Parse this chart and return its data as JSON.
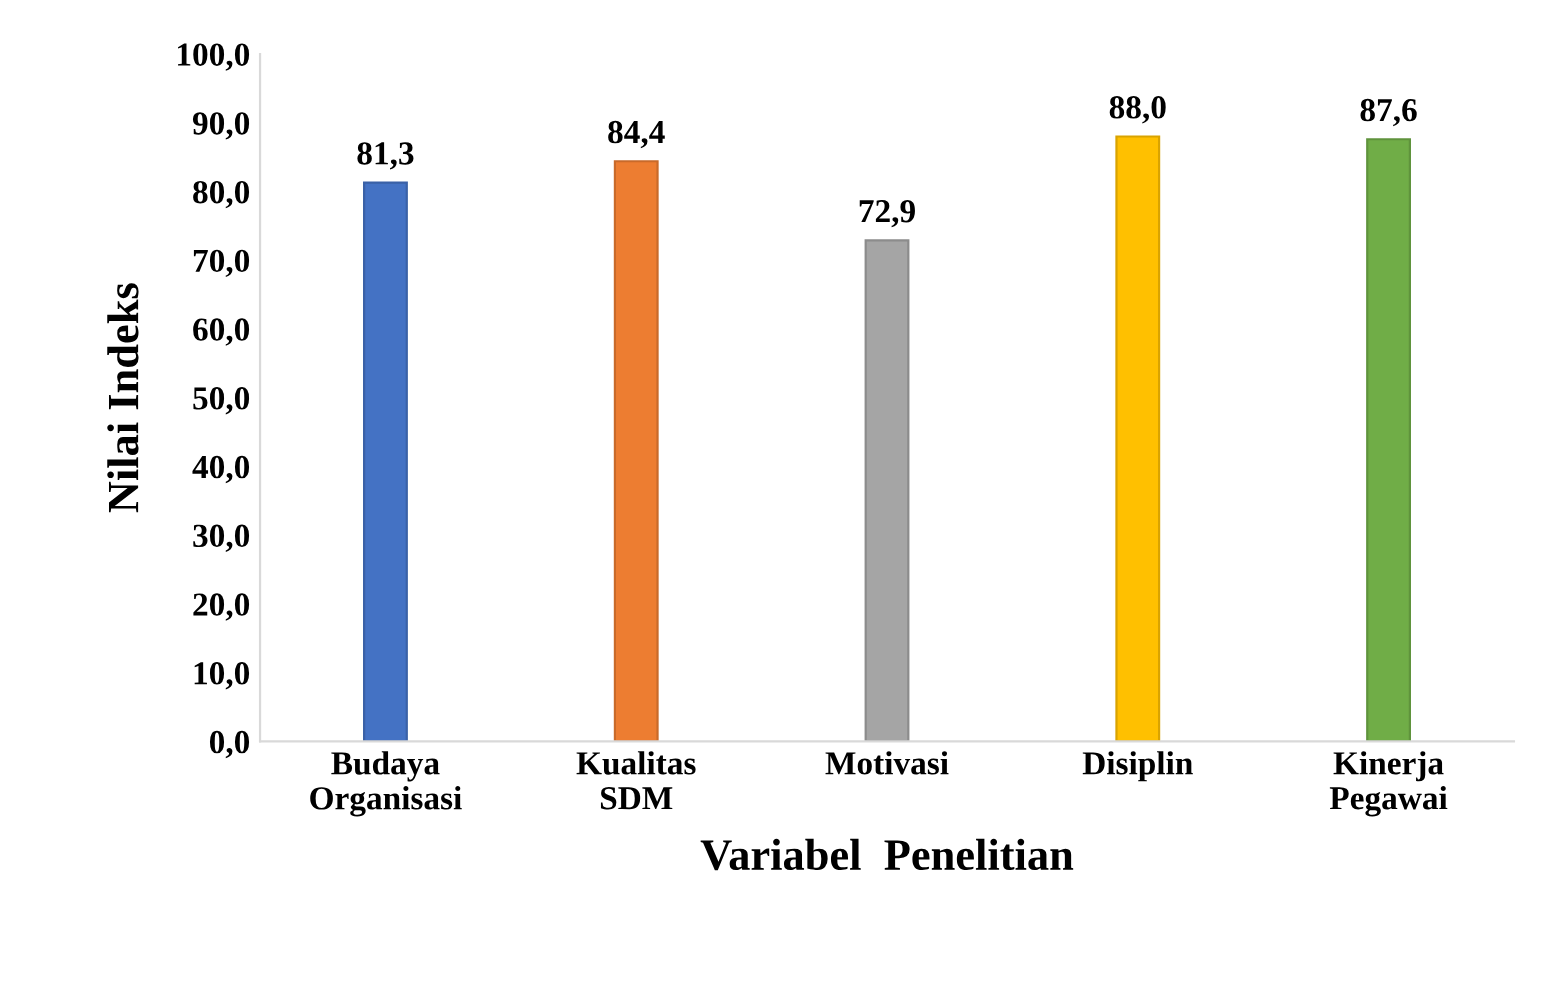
{
  "chart_data": {
    "type": "bar",
    "xlabel": "Variabel  Penelitian",
    "ylabel": "Nilai Indeks",
    "categories": [
      "Budaya\nOrganisasi",
      "Kualitas\nSDM",
      "Motivasi",
      "Disiplin",
      "Kinerja\nPegawai"
    ],
    "values": [
      81.3,
      84.4,
      72.9,
      88.0,
      87.6
    ],
    "colors": [
      "#4472c4",
      "#ed7d31",
      "#a5a5a5",
      "#ffc000",
      "#70ad47"
    ],
    "value_labels": [
      "81,3",
      "84,4",
      "72,9",
      "88,0",
      "87,6"
    ],
    "ylim": [
      0,
      100
    ],
    "yticks": [
      {
        "value": 0,
        "label": "0,0"
      },
      {
        "value": 10,
        "label": "10,0"
      },
      {
        "value": 20,
        "label": "20,0"
      },
      {
        "value": 30,
        "label": "30,0"
      },
      {
        "value": 40,
        "label": "40,0"
      },
      {
        "value": 50,
        "label": "50,0"
      },
      {
        "value": 60,
        "label": "60,0"
      },
      {
        "value": 70,
        "label": "70,0"
      },
      {
        "value": 80,
        "label": "80,0"
      },
      {
        "value": 90,
        "label": "90,0"
      },
      {
        "value": 100,
        "label": "100,0"
      }
    ],
    "grid": false,
    "legend": false
  }
}
